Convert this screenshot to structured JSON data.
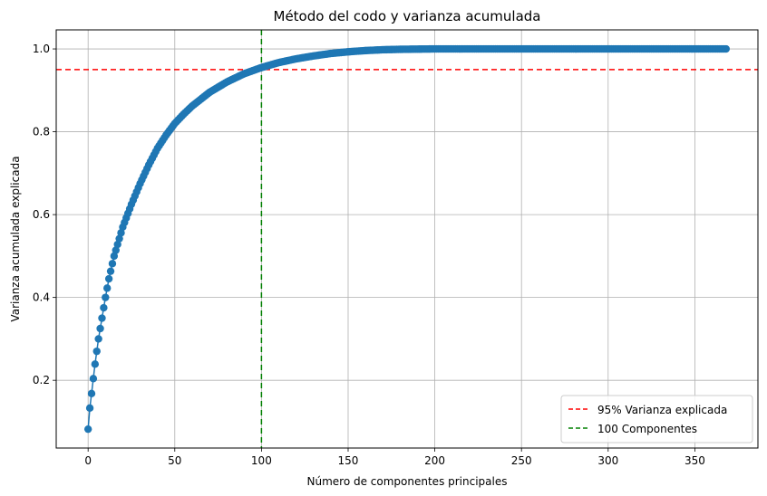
{
  "chart_data": {
    "type": "line",
    "title": "Método del codo y varianza acumulada",
    "xlabel": "Número de componentes principales",
    "ylabel": "Varianza acumulada explicada",
    "xlim": [
      -18.4,
      386.4
    ],
    "ylim": [
      0.0365,
      1.046
    ],
    "xticks": [
      0,
      50,
      100,
      150,
      200,
      250,
      300,
      350
    ],
    "xtick_labels": [
      "0",
      "50",
      "100",
      "150",
      "200",
      "250",
      "300",
      "350"
    ],
    "yticks": [
      0.2,
      0.4,
      0.6,
      0.8,
      1.0
    ],
    "ytick_labels": [
      "0.2",
      "0.4",
      "0.6",
      "0.8",
      "1.0"
    ],
    "grid": true,
    "legend_position": "bottom-right",
    "series": [
      {
        "color": "#1f77b4",
        "marker": "circle",
        "x_start": 0,
        "x_end": 368,
        "points": [
          [
            0,
            0.082
          ],
          [
            1,
            0.133
          ],
          [
            2,
            0.168
          ],
          [
            3,
            0.204
          ],
          [
            4,
            0.239
          ],
          [
            5,
            0.27
          ],
          [
            6,
            0.3
          ],
          [
            8,
            0.35
          ],
          [
            10,
            0.4
          ],
          [
            12,
            0.445
          ],
          [
            15,
            0.5
          ],
          [
            20,
            0.57
          ],
          [
            25,
            0.625
          ],
          [
            30,
            0.675
          ],
          [
            35,
            0.72
          ],
          [
            40,
            0.76
          ],
          [
            45,
            0.792
          ],
          [
            50,
            0.82
          ],
          [
            55,
            0.842
          ],
          [
            60,
            0.862
          ],
          [
            70,
            0.895
          ],
          [
            80,
            0.92
          ],
          [
            90,
            0.94
          ],
          [
            100,
            0.955
          ],
          [
            110,
            0.967
          ],
          [
            120,
            0.976
          ],
          [
            130,
            0.983
          ],
          [
            140,
            0.989
          ],
          [
            150,
            0.993
          ],
          [
            160,
            0.996
          ],
          [
            170,
            0.998
          ],
          [
            180,
            0.999
          ],
          [
            190,
            0.9995
          ],
          [
            200,
            1.0
          ],
          [
            368,
            1.0
          ]
        ]
      }
    ],
    "reference_lines": [
      {
        "orientation": "horizontal",
        "value": 0.95,
        "color": "#ff0000",
        "style": "dashed",
        "label": "95% Varianza explicada"
      },
      {
        "orientation": "vertical",
        "value": 100,
        "color": "#008000",
        "style": "dashed",
        "label": "100 Componentes"
      }
    ]
  }
}
